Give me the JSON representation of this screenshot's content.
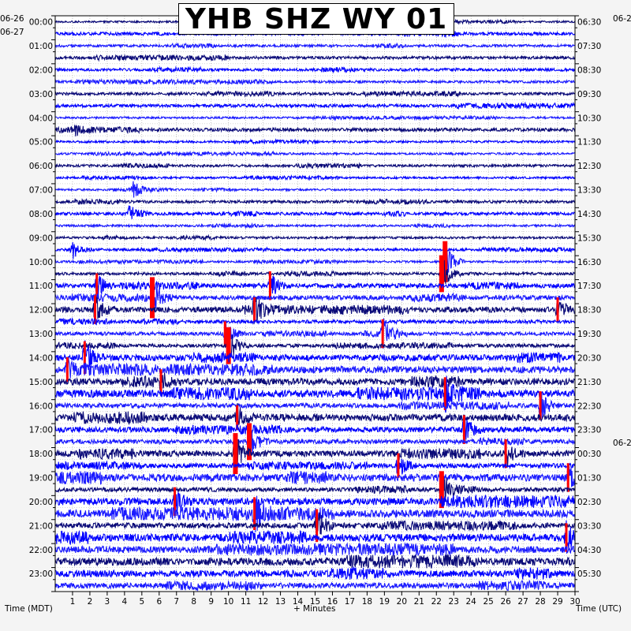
{
  "chart_data": {
    "type": "line",
    "title": "YHB SHZ WY 01",
    "xlabel": "+ Minutes",
    "left_axis_label": "Time (MDT)",
    "right_axis_label": "Time (UTC)",
    "x_ticks": [
      1,
      2,
      3,
      4,
      5,
      6,
      7,
      8,
      9,
      10,
      11,
      12,
      13,
      14,
      15,
      16,
      17,
      18,
      19,
      20,
      21,
      22,
      23,
      24,
      25,
      26,
      27,
      28,
      29,
      30
    ],
    "xlim": [
      0,
      30
    ],
    "rows_per_hour": 2,
    "row_count": 48,
    "left_date_labels": [
      "06-26",
      "06-27"
    ],
    "right_date_labels": [
      "06-2",
      "06-2"
    ],
    "left_hour_labels": [
      "00:00",
      "01:00",
      "02:00",
      "03:00",
      "04:00",
      "05:00",
      "06:00",
      "07:00",
      "08:00",
      "09:00",
      "10:00",
      "11:00",
      "12:00",
      "13:00",
      "14:00",
      "15:00",
      "16:00",
      "17:00",
      "18:00",
      "19:00",
      "20:00",
      "21:00",
      "22:00",
      "23:00"
    ],
    "right_hour_labels": [
      "06:30",
      "07:30",
      "08:30",
      "09:30",
      "10:30",
      "11:30",
      "12:30",
      "13:30",
      "14:30",
      "15:30",
      "16:30",
      "17:30",
      "18:30",
      "19:30",
      "20:30",
      "21:30",
      "22:30",
      "23:30",
      "00:30",
      "01:30",
      "02:30",
      "03:30",
      "04:30",
      "05:30"
    ],
    "trace_colors": [
      "#0a0a78",
      "#0000ff",
      "#1a1aff"
    ],
    "clip_color": "#ff0000",
    "grid": true,
    "events": [
      {
        "row": 9,
        "minute": 1.2,
        "size": 0.25
      },
      {
        "row": 14,
        "minute": 4.5,
        "size": 0.4
      },
      {
        "row": 16,
        "minute": 4.3,
        "size": 0.5
      },
      {
        "row": 19,
        "minute": 1.0,
        "size": 0.45
      },
      {
        "row": 20,
        "minute": 22.5,
        "size": 1.0
      },
      {
        "row": 21,
        "minute": 22.3,
        "size": 0.9
      },
      {
        "row": 22,
        "minute": 2.4,
        "size": 0.6
      },
      {
        "row": 22,
        "minute": 12.4,
        "size": 0.7
      },
      {
        "row": 23,
        "minute": 5.6,
        "size": 1.0
      },
      {
        "row": 24,
        "minute": 2.3,
        "size": 0.7
      },
      {
        "row": 24,
        "minute": 11.5,
        "size": 0.6
      },
      {
        "row": 24,
        "minute": 29.0,
        "size": 0.6
      },
      {
        "row": 26,
        "minute": 9.8,
        "size": 0.6
      },
      {
        "row": 26,
        "minute": 18.9,
        "size": 0.7
      },
      {
        "row": 27,
        "minute": 10.0,
        "size": 0.9
      },
      {
        "row": 28,
        "minute": 1.7,
        "size": 0.8
      },
      {
        "row": 29,
        "minute": 0.7,
        "size": 0.6
      },
      {
        "row": 30,
        "minute": 6.1,
        "size": 0.6
      },
      {
        "row": 31,
        "minute": 22.5,
        "size": 0.8
      },
      {
        "row": 32,
        "minute": 28.0,
        "size": 0.7
      },
      {
        "row": 33,
        "minute": 10.5,
        "size": 0.6
      },
      {
        "row": 34,
        "minute": 23.6,
        "size": 0.7
      },
      {
        "row": 35,
        "minute": 11.2,
        "size": 0.9
      },
      {
        "row": 36,
        "minute": 10.4,
        "size": 1.0
      },
      {
        "row": 36,
        "minute": 26.0,
        "size": 0.7
      },
      {
        "row": 37,
        "minute": 19.8,
        "size": 0.6
      },
      {
        "row": 38,
        "minute": 29.6,
        "size": 0.7
      },
      {
        "row": 39,
        "minute": 22.3,
        "size": 0.9
      },
      {
        "row": 40,
        "minute": 6.9,
        "size": 0.7
      },
      {
        "row": 41,
        "minute": 11.5,
        "size": 0.8
      },
      {
        "row": 42,
        "minute": 15.1,
        "size": 0.8
      },
      {
        "row": 43,
        "minute": 29.5,
        "size": 0.7
      }
    ]
  }
}
